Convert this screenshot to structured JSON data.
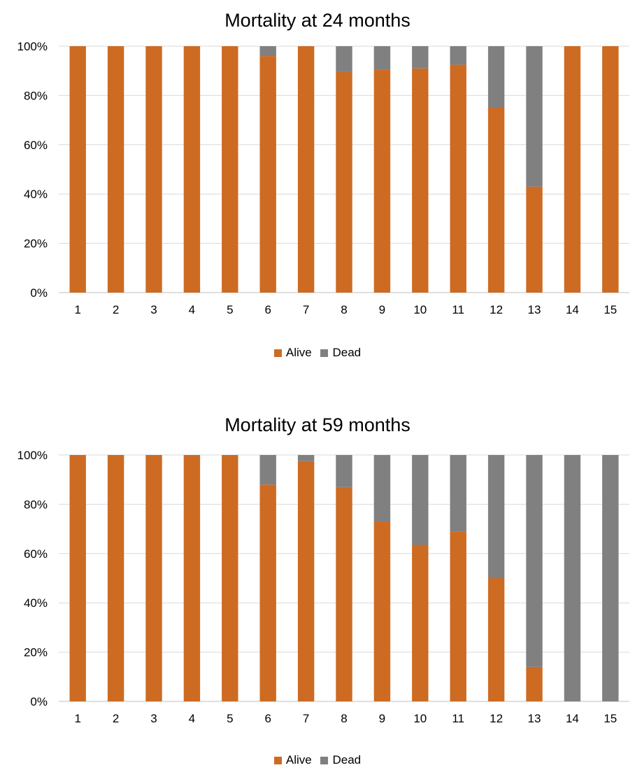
{
  "chart_data": [
    {
      "type": "bar",
      "stacked": true,
      "title": "Mortality at 24 months",
      "categories": [
        "1",
        "2",
        "3",
        "4",
        "5",
        "6",
        "7",
        "8",
        "9",
        "10",
        "11",
        "12",
        "13",
        "14",
        "15"
      ],
      "series": [
        {
          "name": "Alive",
          "color": "#cd6b23",
          "values": [
            100,
            100,
            100,
            100,
            100,
            96,
            100,
            89.5,
            90.5,
            91,
            92.5,
            75,
            43,
            100,
            100
          ]
        },
        {
          "name": "Dead",
          "color": "#808080",
          "values": [
            0,
            0,
            0,
            0,
            0,
            4,
            0,
            10.5,
            9.5,
            9,
            7.5,
            25,
            57,
            0,
            0
          ]
        }
      ],
      "ylim": [
        0,
        100
      ],
      "y_ticks": [
        "0%",
        "20%",
        "40%",
        "60%",
        "80%",
        "100%"
      ],
      "grid": true,
      "legend_position": "bottom"
    },
    {
      "type": "bar",
      "stacked": true,
      "title": "Mortality at 59 months",
      "categories": [
        "1",
        "2",
        "3",
        "4",
        "5",
        "6",
        "7",
        "8",
        "9",
        "10",
        "11",
        "12",
        "13",
        "14",
        "15"
      ],
      "series": [
        {
          "name": "Alive",
          "color": "#cd6b23",
          "values": [
            100,
            100,
            100,
            100,
            100,
            88,
            97.5,
            87,
            73,
            63.5,
            69,
            50,
            14,
            0,
            0
          ]
        },
        {
          "name": "Dead",
          "color": "#808080",
          "values": [
            0,
            0,
            0,
            0,
            0,
            12,
            2.5,
            13,
            27,
            36.5,
            31,
            50,
            86,
            100,
            100
          ]
        }
      ],
      "ylim": [
        0,
        100
      ],
      "y_ticks": [
        "0%",
        "20%",
        "40%",
        "60%",
        "80%",
        "100%"
      ],
      "grid": true,
      "legend_position": "bottom"
    }
  ]
}
